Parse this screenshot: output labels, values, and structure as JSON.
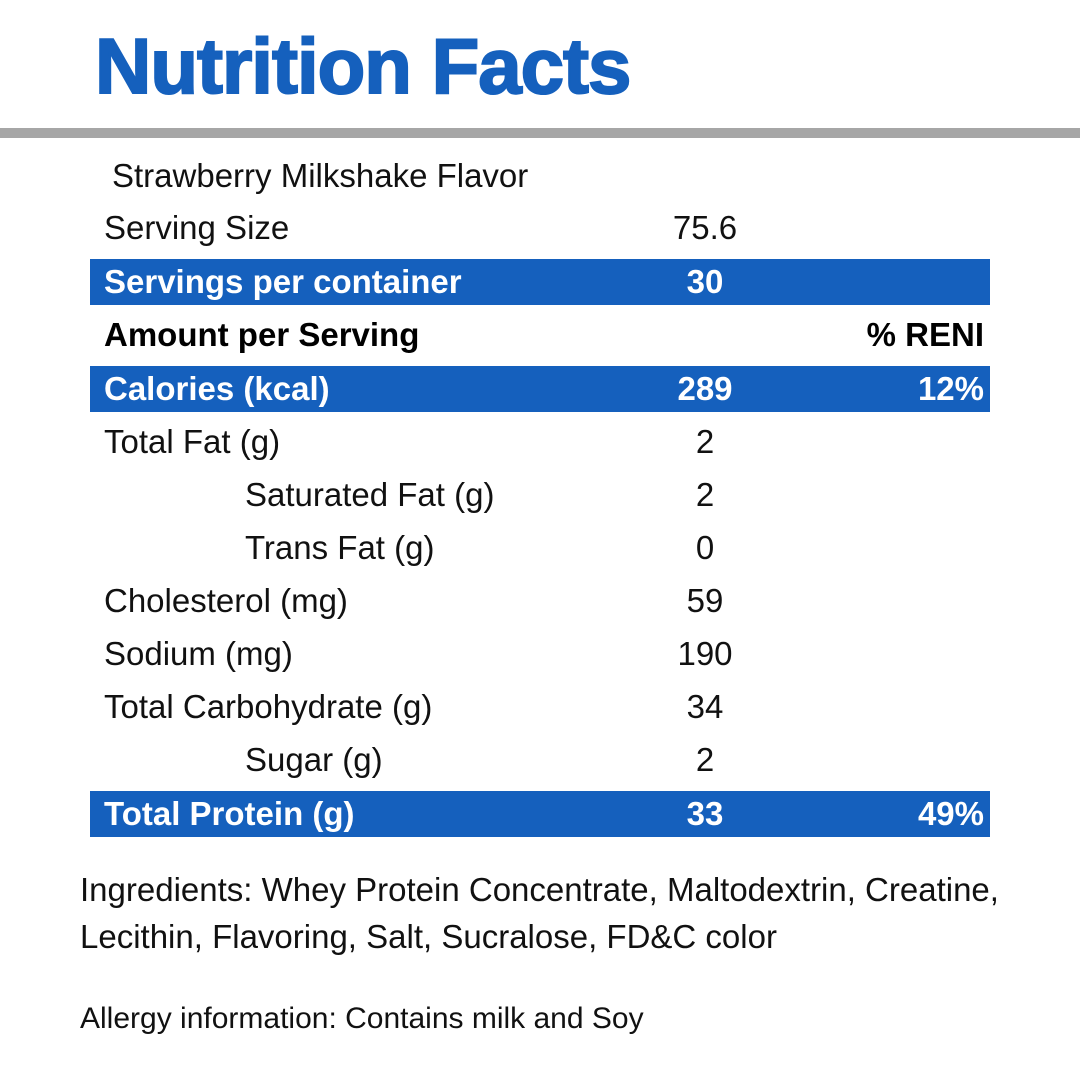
{
  "title": "Nutrition Facts",
  "flavor": "Strawberry Milkshake Flavor",
  "colors": {
    "accent": "#1560BD",
    "divider": "#A6A6A6"
  },
  "rows": [
    {
      "label": "Serving Size",
      "value": "75.6",
      "percent": "",
      "style": "plain"
    },
    {
      "label": "Servings per container",
      "value": "30",
      "percent": "",
      "style": "highlight"
    },
    {
      "label": "Amount per Serving",
      "value": "",
      "percent": "% RENI",
      "style": "header"
    },
    {
      "label": "Calories (kcal)",
      "value": "289",
      "percent": "12%",
      "style": "highlight"
    },
    {
      "label": "Total Fat (g)",
      "value": "2",
      "percent": "",
      "style": "plain"
    },
    {
      "label": "Saturated Fat (g)",
      "value": "2",
      "percent": "",
      "style": "indent"
    },
    {
      "label": "Trans Fat (g)",
      "value": "0",
      "percent": "",
      "style": "indent"
    },
    {
      "label": "Cholesterol (mg)",
      "value": "59",
      "percent": "",
      "style": "plain"
    },
    {
      "label": "Sodium (mg)",
      "value": "190",
      "percent": "",
      "style": "plain"
    },
    {
      "label": "Total Carbohydrate (g)",
      "value": "34",
      "percent": "",
      "style": "plain"
    },
    {
      "label": "Sugar (g)",
      "value": "2",
      "percent": "",
      "style": "indent"
    },
    {
      "label": "Total Protein (g)",
      "value": "33",
      "percent": "49%",
      "style": "highlight"
    }
  ],
  "ingredients": "Ingredients: Whey Protein Concentrate, Maltodextrin, Creatine, Lecithin, Flavoring, Salt, Sucralose, FD&C color",
  "allergy": "Allergy information: Contains milk and Soy"
}
